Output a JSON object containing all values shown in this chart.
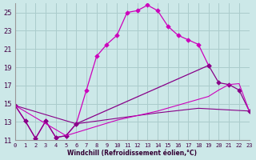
{
  "xlabel": "Windchill (Refroidissement éolien,°C)",
  "bg_color": "#cce8e8",
  "grid_color": "#aacccc",
  "lc1": "#cc00bb",
  "lc2": "#880088",
  "xlim": [
    0,
    23
  ],
  "ylim": [
    11,
    26
  ],
  "yticks": [
    11,
    13,
    15,
    17,
    19,
    21,
    23,
    25
  ],
  "xticks": [
    0,
    1,
    2,
    3,
    4,
    5,
    6,
    7,
    8,
    9,
    10,
    11,
    12,
    13,
    14,
    15,
    16,
    17,
    18,
    19,
    20,
    21,
    22,
    23
  ],
  "line1_x": [
    0,
    1,
    2,
    3,
    4,
    5,
    6,
    7,
    8,
    9,
    10,
    11,
    12,
    13,
    14,
    15,
    16,
    17,
    18,
    19
  ],
  "line1_y": [
    14.8,
    13.1,
    11.2,
    13.1,
    11.3,
    11.5,
    12.8,
    16.5,
    20.2,
    21.5,
    22.5,
    25.0,
    25.2,
    25.8,
    25.2,
    23.5,
    22.5,
    22.0,
    21.5,
    19.2
  ],
  "line2_x": [
    0,
    1,
    2,
    3,
    4,
    5,
    6,
    19,
    20,
    21,
    22,
    23
  ],
  "line2_y": [
    14.8,
    13.1,
    11.2,
    13.1,
    11.3,
    11.5,
    12.8,
    19.2,
    17.3,
    17.1,
    16.5,
    14.2
  ],
  "line3_x": [
    0,
    6,
    10,
    14,
    18,
    23
  ],
  "line3_y": [
    14.8,
    12.8,
    13.4,
    14.0,
    14.5,
    14.2
  ],
  "line4_x": [
    0,
    5,
    10,
    14,
    19,
    20,
    21,
    22,
    23
  ],
  "line4_y": [
    14.8,
    11.5,
    13.2,
    14.2,
    15.8,
    16.5,
    17.1,
    17.2,
    14.2
  ]
}
